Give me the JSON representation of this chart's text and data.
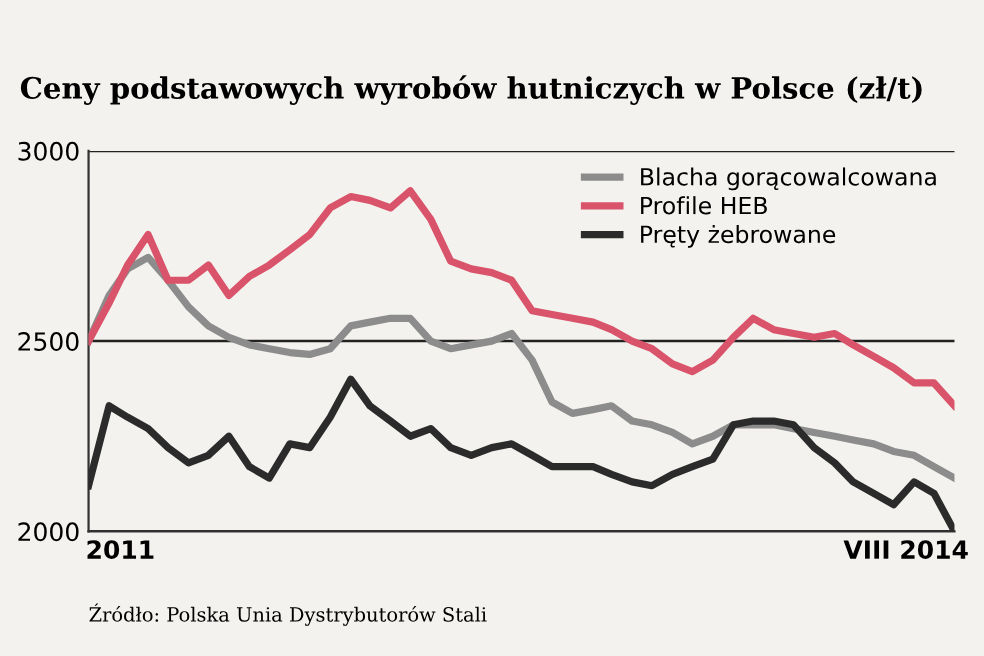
{
  "chart_data": {
    "type": "line",
    "title": "Ceny podstawowych wyrobów hutniczych w Polsce (zł/t)",
    "annotations": [
      "Źródło: Polska Unia Dystrybutorów Stali"
    ],
    "x": [
      "2011-01",
      "2011-02",
      "2011-03",
      "2011-04",
      "2011-05",
      "2011-06",
      "2011-07",
      "2011-08",
      "2011-09",
      "2011-10",
      "2011-11",
      "2011-12",
      "2012-01",
      "2012-02",
      "2012-03",
      "2012-04",
      "2012-05",
      "2012-06",
      "2012-07",
      "2012-08",
      "2012-09",
      "2012-10",
      "2012-11",
      "2012-12",
      "2013-01",
      "2013-02",
      "2013-03",
      "2013-04",
      "2013-05",
      "2013-06",
      "2013-07",
      "2013-08",
      "2013-09",
      "2013-10",
      "2013-11",
      "2013-12",
      "2014-01",
      "2014-02",
      "2014-03",
      "2014-04",
      "2014-05",
      "2014-06",
      "2014-07",
      "2014-08"
    ],
    "series": [
      {
        "name": "Blacha gorącowalcowana",
        "color": "#8c8c8c",
        "values": [
          2500,
          2620,
          2690,
          2720,
          2660,
          2590,
          2540,
          2510,
          2490,
          2480,
          2470,
          2465,
          2480,
          2540,
          2550,
          2560,
          2560,
          2500,
          2480,
          2490,
          2500,
          2520,
          2450,
          2340,
          2310,
          2320,
          2330,
          2290,
          2280,
          2260,
          2230,
          2250,
          2280,
          2280,
          2280,
          2270,
          2260,
          2250,
          2240,
          2230,
          2210,
          2200,
          2170,
          2140
        ]
      },
      {
        "name": "Profile HEB",
        "color": "#d9546a",
        "values": [
          2500,
          2600,
          2700,
          2780,
          2660,
          2660,
          2700,
          2620,
          2670,
          2700,
          2740,
          2780,
          2850,
          2880,
          2870,
          2850,
          2895,
          2820,
          2710,
          2690,
          2680,
          2660,
          2580,
          2570,
          2560,
          2550,
          2530,
          2500,
          2480,
          2440,
          2420,
          2450,
          2510,
          2560,
          2530,
          2520,
          2510,
          2520,
          2490,
          2460,
          2430,
          2390,
          2390,
          2330
        ]
      },
      {
        "name": "Pręty żebrowane",
        "color": "#2b2b2b",
        "values": [
          2120,
          2330,
          2300,
          2270,
          2220,
          2180,
          2200,
          2250,
          2170,
          2140,
          2230,
          2220,
          2300,
          2400,
          2330,
          2290,
          2250,
          2270,
          2220,
          2200,
          2220,
          2230,
          2200,
          2170,
          2170,
          2170,
          2150,
          2130,
          2120,
          2150,
          2170,
          2190,
          2280,
          2290,
          2290,
          2280,
          2220,
          2180,
          2130,
          2100,
          2070,
          2130,
          2100,
          2000
        ]
      }
    ],
    "xlim": [
      "2011-01",
      "2014-08"
    ],
    "xticks": [
      {
        "value": "2011-02-18",
        "label": "2011"
      },
      {
        "value": "2014-05-20",
        "label": "VIII 2014"
      }
    ],
    "ylim": [
      2000,
      3000
    ],
    "yticks": [
      2000,
      2500,
      3000
    ],
    "grid": "y",
    "legend": "top right",
    "line_style": "solid",
    "marker": "none"
  }
}
